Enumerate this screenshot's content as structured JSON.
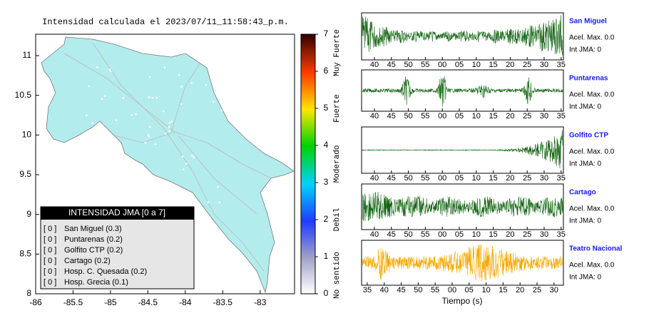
{
  "map": {
    "title": "Intensidad calculada el 2023/07/11_11:58:43_p.m.",
    "xlim": [
      -86,
      -82.54
    ],
    "ylim": [
      8,
      11.27
    ],
    "xticks": [
      -86,
      -85.5,
      -85,
      -84.5,
      -84,
      -83.5,
      -83
    ],
    "yticks": [
      8,
      8.5,
      9,
      9.5,
      10,
      10.5,
      11
    ],
    "land_color": "#b3ecec"
  },
  "colorbar": {
    "lim": [
      0,
      7
    ],
    "ticks": [
      0,
      1,
      2,
      3,
      4,
      5,
      6,
      7
    ],
    "labels": [
      {
        "text": "No sentido",
        "value": 0.5
      },
      {
        "text": "Debil",
        "value": 2
      },
      {
        "text": "Moderado",
        "value": 3.5
      },
      {
        "text": "Fuerte",
        "value": 5
      },
      {
        "text": "Muy Fuerte",
        "value": 6.5
      }
    ]
  },
  "legend": {
    "title": "INTENSIDAD JMA [0 a 7]",
    "items": [
      {
        "level": "[ 0 ]",
        "name": "San Miguel (0.3)"
      },
      {
        "level": "[ 0 ]",
        "name": "Puntarenas (0.2)"
      },
      {
        "level": "[ 0 ]",
        "name": "Golfito CTP (0.2)"
      },
      {
        "level": "[ 0 ]",
        "name": "Cartago (0.2)"
      },
      {
        "level": "[ 0 ]",
        "name": "Hosp. C. Quesada (0.2)"
      },
      {
        "level": "[ 0 ]",
        "name": "Hosp. Grecia (0.1)"
      }
    ]
  },
  "traces": [
    {
      "station": "San Miguel",
      "acel": "Acel. Max. 0.0",
      "int": "Int JMA: 0",
      "color": "#146614",
      "xticks": [
        "40",
        "45",
        "50",
        "55",
        "00",
        "05",
        "10",
        "15",
        "20",
        "25",
        "30",
        "35"
      ]
    },
    {
      "station": "Puntarenas",
      "acel": "Acel. Max. 0.0",
      "int": "Int JMA: 0",
      "color": "#146614",
      "xticks": [
        "40",
        "45",
        "50",
        "55",
        "00",
        "05",
        "10",
        "15",
        "20",
        "25",
        "30",
        "35"
      ]
    },
    {
      "station": "Golfito CTP",
      "acel": "Acel. Max. 0.0",
      "int": "Int JMA: 0",
      "color": "#146614",
      "xticks": [
        "40",
        "45",
        "50",
        "55",
        "00",
        "05",
        "10",
        "15",
        "20",
        "25",
        "30",
        "35"
      ]
    },
    {
      "station": "Cartago",
      "acel": "Acel. Max. 0.0",
      "int": "Int JMA: 0",
      "color": "#146614",
      "xticks": [
        "40",
        "45",
        "50",
        "55",
        "00",
        "05",
        "10",
        "15",
        "20",
        "25",
        "30",
        "35"
      ]
    },
    {
      "station": "Teatro Nacional",
      "acel": "Acel. Max. 0.0",
      "int": "Int JMA: 0",
      "color": "#f5a800",
      "xticks": [
        "35",
        "40",
        "45",
        "50",
        "55",
        "00",
        "05",
        "10",
        "15",
        "20",
        "25",
        "30"
      ]
    }
  ],
  "x_label": "Tiempo (s)"
}
